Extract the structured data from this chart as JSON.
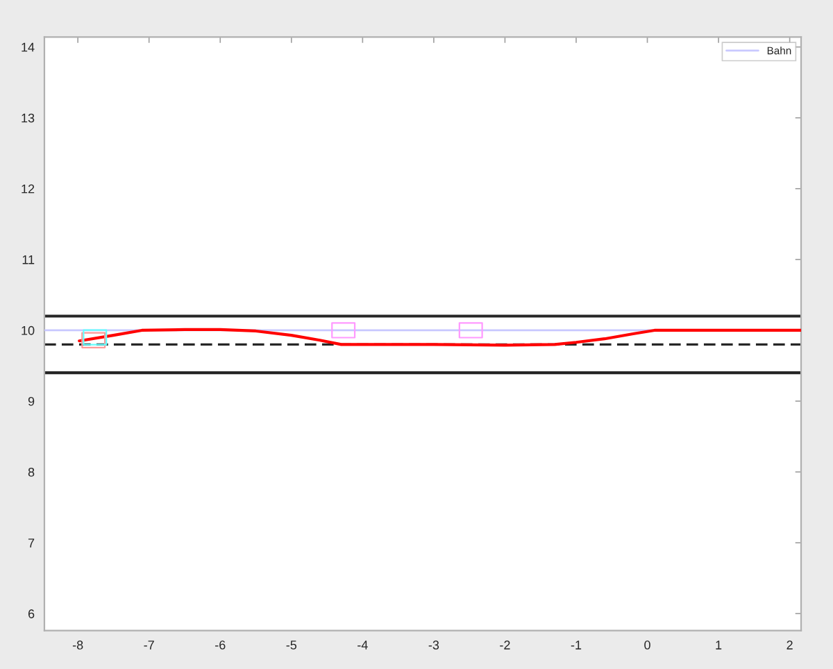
{
  "chart_data": {
    "type": "line",
    "xlim": [
      -8.47,
      2.16
    ],
    "ylim": [
      5.76,
      14.14
    ],
    "xticks": [
      -8,
      -7,
      -6,
      -5,
      -4,
      -3,
      -2,
      -1,
      0,
      1,
      2
    ],
    "yticks": [
      6,
      7,
      8,
      9,
      10,
      11,
      12,
      13,
      14
    ],
    "legend": "top right",
    "ref_lines": [
      {
        "axis": "y",
        "value": 10.2,
        "color": "#262626"
      },
      {
        "axis": "y",
        "value": 9.4,
        "color": "#262626"
      },
      {
        "axis": "y",
        "value": 9.8,
        "color": "#262626",
        "line_style": "dashed"
      }
    ],
    "series": [
      {
        "name": "Bahn",
        "color": "#c8c8ff",
        "x": [
          -8.47,
          2.16
        ],
        "values": [
          10.0,
          10.0
        ]
      },
      {
        "color": "#ff0000",
        "x": [
          -7.98,
          -7.5,
          -7.1,
          -6.5,
          -6.0,
          -5.5,
          -5.0,
          -4.6,
          -4.3,
          -3.0,
          -2.0,
          -1.3,
          -1.0,
          -0.6,
          -0.2,
          0.1,
          2.16
        ],
        "values": [
          9.85,
          9.93,
          10.0,
          10.01,
          10.01,
          9.99,
          9.93,
          9.86,
          9.8,
          9.8,
          9.79,
          9.8,
          9.83,
          9.88,
          9.95,
          10.0,
          10.0
        ]
      },
      {
        "type": "scatter",
        "marker": "square",
        "color": "#ff9999",
        "x": [
          -7.78
        ],
        "values": [
          9.86
        ]
      },
      {
        "type": "scatter",
        "marker": "square",
        "color": "#66ffff",
        "x": [
          -7.76
        ],
        "values": [
          9.9
        ]
      },
      {
        "type": "scatter",
        "marker": "square",
        "color": "#ff99ff",
        "x": [
          -4.27,
          -2.48
        ],
        "values": [
          10.0,
          10.0
        ]
      }
    ]
  }
}
